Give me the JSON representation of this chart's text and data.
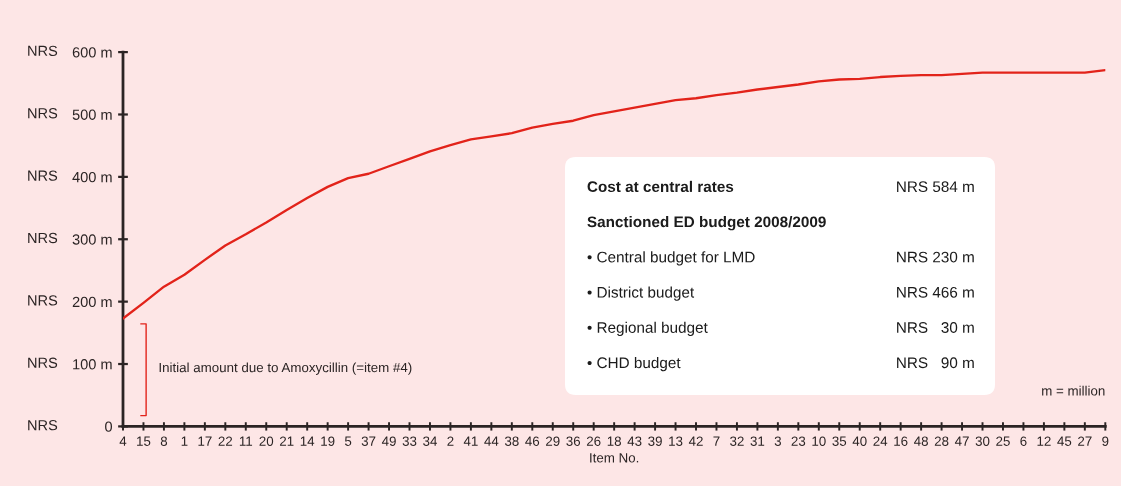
{
  "chart_data": [
    {
      "type": "line",
      "xlabel": "Item No.",
      "ylabel": "NRS",
      "color": "#e2231a",
      "categories": [
        "4",
        "15",
        "8",
        "1",
        "17",
        "22",
        "11",
        "20",
        "21",
        "14",
        "19",
        "5",
        "37",
        "49",
        "33",
        "34",
        "2",
        "41",
        "44",
        "38",
        "46",
        "29",
        "36",
        "26",
        "18",
        "43",
        "39",
        "13",
        "42",
        "7",
        "32",
        "31",
        "3",
        "23",
        "10",
        "35",
        "40",
        "24",
        "16",
        "48",
        "28",
        "47",
        "30",
        "25",
        "6",
        "12",
        "45",
        "27",
        "9"
      ],
      "values": [
        173,
        198,
        224,
        243,
        267,
        290,
        308,
        327,
        347,
        366,
        384,
        398,
        405,
        417,
        429,
        441,
        451,
        460,
        465,
        470,
        479,
        485,
        490,
        499,
        505,
        511,
        517,
        523,
        526,
        531,
        535,
        540,
        544,
        548,
        553,
        556,
        557,
        560,
        562,
        563,
        563,
        565,
        567,
        567,
        567,
        567,
        567,
        567,
        571
      ],
      "ylim": [
        0,
        600
      ],
      "yticks": [
        0,
        {
          "value": 100,
          "label": "100 m"
        },
        {
          "value": 200,
          "label": "200 m"
        },
        {
          "value": 300,
          "label": "300 m"
        },
        {
          "value": 400,
          "label": "400 m"
        },
        {
          "value": 500,
          "label": "500 m"
        },
        {
          "value": 600,
          "label": "600 m"
        }
      ],
      "annotations": [
        "Initial amount due to Amoxycillin (=item #4)",
        "m = million"
      ]
    },
    {
      "type": "other",
      "categories": [
        "Cost at central rates",
        "Sanctioned ED budget 2008/2009",
        "• Central budget for LMD",
        "• District budget",
        "• Regional budget",
        "• CHD budget"
      ],
      "values": [
        584,
        null,
        230,
        466,
        30,
        90
      ],
      "value_labels": [
        "NRS 584 m",
        null,
        "NRS 230 m",
        "NRS 466 m",
        "NRS   30 m",
        "NRS   90 m"
      ]
    }
  ]
}
